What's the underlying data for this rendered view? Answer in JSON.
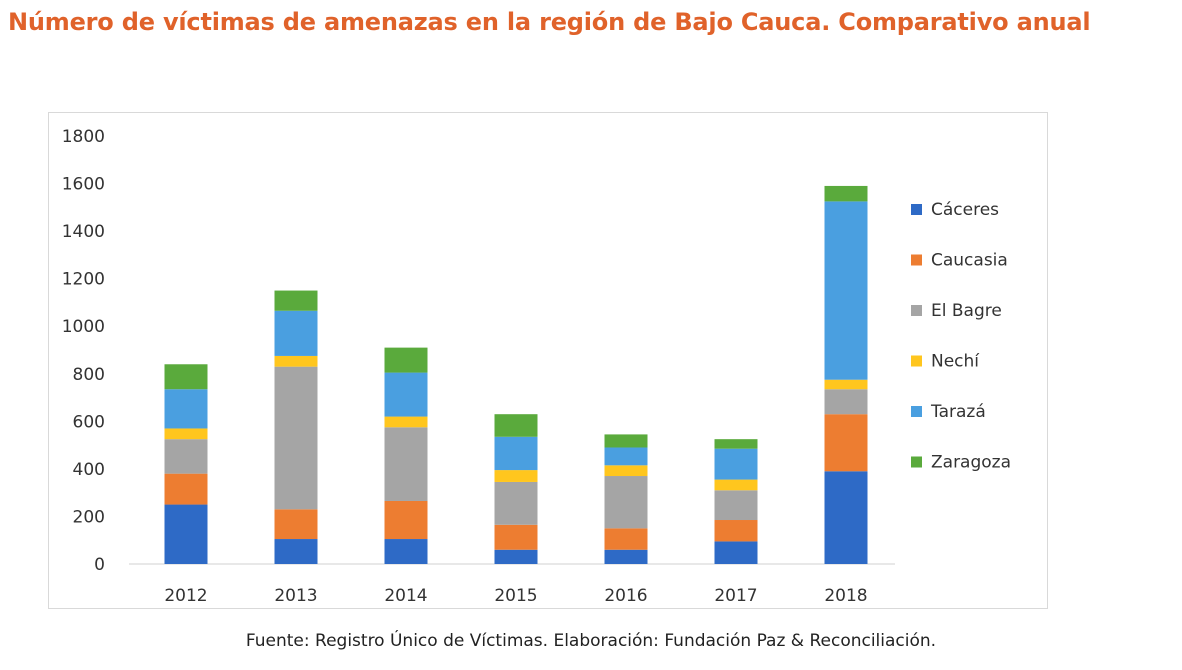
{
  "title": "Número de víctimas de amenazas en la región de Bajo Cauca. Comparativo anual",
  "source": "Fuente: Registro Único de Víctimas. Elaboración: Fundación Paz & Reconciliación.",
  "colors": {
    "title": "#e0622a",
    "Cáceres": "#2e6ac6",
    "Caucasia": "#ed7d31",
    "El Bagre": "#a5a5a5",
    "Nechí": "#ffc61e",
    "Tarazá": "#4a9fe0",
    "Zaragoza": "#5aaa3c"
  },
  "chart_data": {
    "type": "bar",
    "stacked": true,
    "categories": [
      "2012",
      "2013",
      "2014",
      "2015",
      "2016",
      "2017",
      "2018"
    ],
    "ylim": [
      0,
      1800
    ],
    "yticks": [
      0,
      200,
      400,
      600,
      800,
      1000,
      1200,
      1400,
      1600,
      1800
    ],
    "legend_position": "right",
    "grid": false,
    "series": [
      {
        "name": "Cáceres",
        "values": [
          250,
          105,
          105,
          60,
          60,
          95,
          390
        ]
      },
      {
        "name": "Caucasia",
        "values": [
          130,
          125,
          160,
          105,
          90,
          90,
          240
        ]
      },
      {
        "name": "El Bagre",
        "values": [
          145,
          600,
          310,
          180,
          220,
          125,
          105
        ]
      },
      {
        "name": "Nechí",
        "values": [
          45,
          45,
          45,
          50,
          45,
          45,
          40
        ]
      },
      {
        "name": "Tarazá",
        "values": [
          165,
          190,
          185,
          140,
          75,
          130,
          750
        ]
      },
      {
        "name": "Zaragoza",
        "values": [
          105,
          85,
          105,
          95,
          55,
          40,
          65
        ]
      }
    ]
  }
}
